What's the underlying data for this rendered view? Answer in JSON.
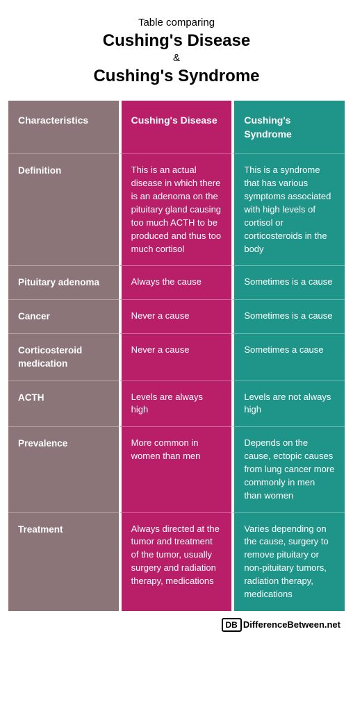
{
  "header": {
    "pretitle": "Table comparing",
    "title1": "Cushing's Disease",
    "amp": "&",
    "title2": "Cushing's Syndrome"
  },
  "columns": {
    "c0": "Characteristics",
    "c1": "Cushing's Disease",
    "c2": "Cushing's Syndrome"
  },
  "rows": [
    {
      "label": "Definition",
      "disease": "This is an actual disease in which there is an adenoma on the pituitary gland causing too much ACTH to be produced and thus too much cortisol",
      "syndrome": "This is a syndrome that has various symptoms associated with high levels of cortisol or corticosteroids in the body"
    },
    {
      "label": "Pituitary adenoma",
      "disease": "Always the cause",
      "syndrome": "Sometimes is a cause"
    },
    {
      "label": "Cancer",
      "disease": "Never a cause",
      "syndrome": "Sometimes is a cause"
    },
    {
      "label": "Corticosteroid medication",
      "disease": "Never a cause",
      "syndrome": "Sometimes a cause"
    },
    {
      "label": "ACTH",
      "disease": "Levels are always high",
      "syndrome": "Levels are not always high"
    },
    {
      "label": "Prevalence",
      "disease": "More common in women than men",
      "syndrome": "Depends on the cause, ectopic causes from lung cancer more commonly in men than women"
    },
    {
      "label": "Treatment",
      "disease": "Always directed at the tumor and treatment of the tumor, usually surgery and radiation therapy, medications",
      "syndrome": "Varies depending on the cause, surgery to remove pituitary or non-pituitary tumors, radiation therapy, medications"
    }
  ],
  "footer": {
    "logo": "DB",
    "brand": "DifferenceBetween.net"
  },
  "colors": {
    "col0": "#8b7579",
    "col1": "#b91e69",
    "col2": "#1f9489",
    "divider": "rgba(255,255,255,0.35)",
    "background": "#ffffff"
  }
}
